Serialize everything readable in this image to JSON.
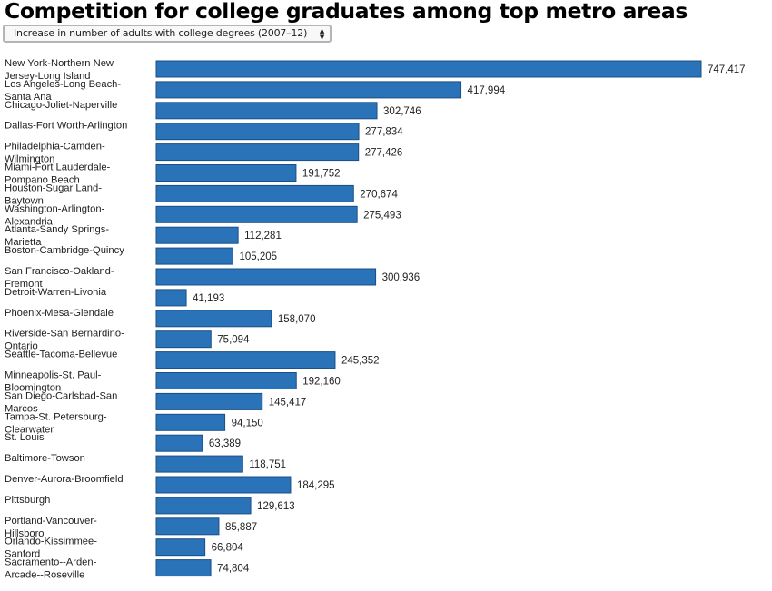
{
  "title": "Competition for college graduates among top metro areas",
  "selector": {
    "value": "Increase in number of adults with college degrees (2007–12)",
    "icon": "updown-arrows-icon"
  },
  "chart_data": {
    "type": "bar",
    "orientation": "horizontal",
    "bar_color": "#2a73b9",
    "categories": [
      [
        "New York-Northern New",
        "Jersey-Long Island"
      ],
      [
        "Los Angeles-Long Beach-",
        "Santa Ana"
      ],
      [
        "Chicago-Joliet-Naperville"
      ],
      [
        "Dallas-Fort Worth-Arlington"
      ],
      [
        "Philadelphia-Camden-",
        "Wilmington"
      ],
      [
        "Miami-Fort Lauderdale-",
        "Pompano Beach"
      ],
      [
        "Houston-Sugar Land-",
        "Baytown"
      ],
      [
        "Washington-Arlington-",
        "Alexandria"
      ],
      [
        "Atlanta-Sandy Springs-",
        "Marietta"
      ],
      [
        "Boston-Cambridge-Quincy"
      ],
      [
        "San Francisco-Oakland-",
        "Fremont"
      ],
      [
        "Detroit-Warren-Livonia"
      ],
      [
        "Phoenix-Mesa-Glendale"
      ],
      [
        "Riverside-San Bernardino-",
        "Ontario"
      ],
      [
        "Seattle-Tacoma-Bellevue"
      ],
      [
        "Minneapolis-St. Paul-",
        "Bloomington"
      ],
      [
        "San Diego-Carlsbad-San",
        "Marcos"
      ],
      [
        "Tampa-St. Petersburg-",
        "Clearwater"
      ],
      [
        "St. Louis"
      ],
      [
        "Baltimore-Towson"
      ],
      [
        "Denver-Aurora-Broomfield"
      ],
      [
        "Pittsburgh"
      ],
      [
        "Portland-Vancouver-",
        "Hillsboro"
      ],
      [
        "Orlando-Kissimmee-",
        "Sanford"
      ],
      [
        "Sacramento--Arden-",
        "Arcade--Roseville"
      ]
    ],
    "values": [
      747417,
      417994,
      302746,
      277834,
      277426,
      191752,
      270674,
      275493,
      112281,
      105205,
      300936,
      41193,
      158070,
      75094,
      245352,
      192160,
      145417,
      94150,
      63389,
      118751,
      184295,
      129613,
      85887,
      66804,
      74804
    ],
    "value_labels": [
      "747,417",
      "417,994",
      "302,746",
      "277,834",
      "277,426",
      "191,752",
      "270,674",
      "275,493",
      "112,281",
      "105,205",
      "300,936",
      "41,193",
      "158,070",
      "75,094",
      "245,352",
      "192,160",
      "145,417",
      "94,150",
      "63,389",
      "118,751",
      "184,295",
      "129,613",
      "85,887",
      "66,804",
      "74,804"
    ],
    "xlim": [
      0,
      747417
    ]
  }
}
